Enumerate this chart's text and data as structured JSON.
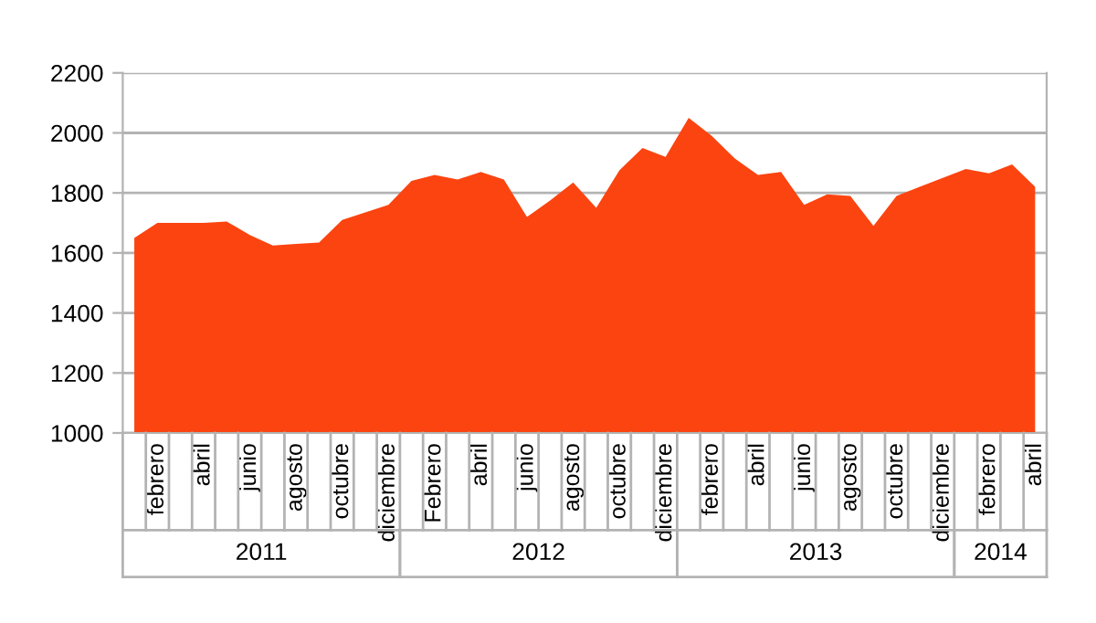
{
  "chart_data": {
    "type": "area",
    "categories": [
      null,
      "febrero",
      null,
      "abril",
      null,
      "junio",
      null,
      "agosto",
      null,
      "octubre",
      null,
      "diciembre",
      null,
      "Febrero",
      null,
      "abril",
      null,
      "junio",
      null,
      "agosto",
      null,
      "octubre",
      null,
      "diciembre",
      null,
      "febrero",
      null,
      "abril",
      null,
      "junio",
      null,
      "agosto",
      null,
      "octubre",
      null,
      "diciembre",
      null,
      "febrero",
      null,
      "abril"
    ],
    "series": [
      {
        "color": "#fc4410",
        "values": [
          1650,
          1700,
          1700,
          1700,
          1705,
          1660,
          1625,
          1630,
          1635,
          1710,
          1735,
          1760,
          1840,
          1860,
          1845,
          1870,
          1845,
          1720,
          1775,
          1835,
          1750,
          1875,
          1950,
          1920,
          2050,
          1990,
          1915,
          1860,
          1870,
          1760,
          1795,
          1790,
          1690,
          1790,
          1820,
          1850,
          1880,
          1865,
          1895,
          1820
        ]
      }
    ],
    "ylim": [
      1000,
      2200
    ],
    "yticks": [
      1000,
      1200,
      1400,
      1600,
      1800,
      2000,
      2200
    ],
    "grid": "y",
    "legend": false,
    "annotations": [
      "2011",
      "2012",
      "2013",
      "2014"
    ]
  }
}
